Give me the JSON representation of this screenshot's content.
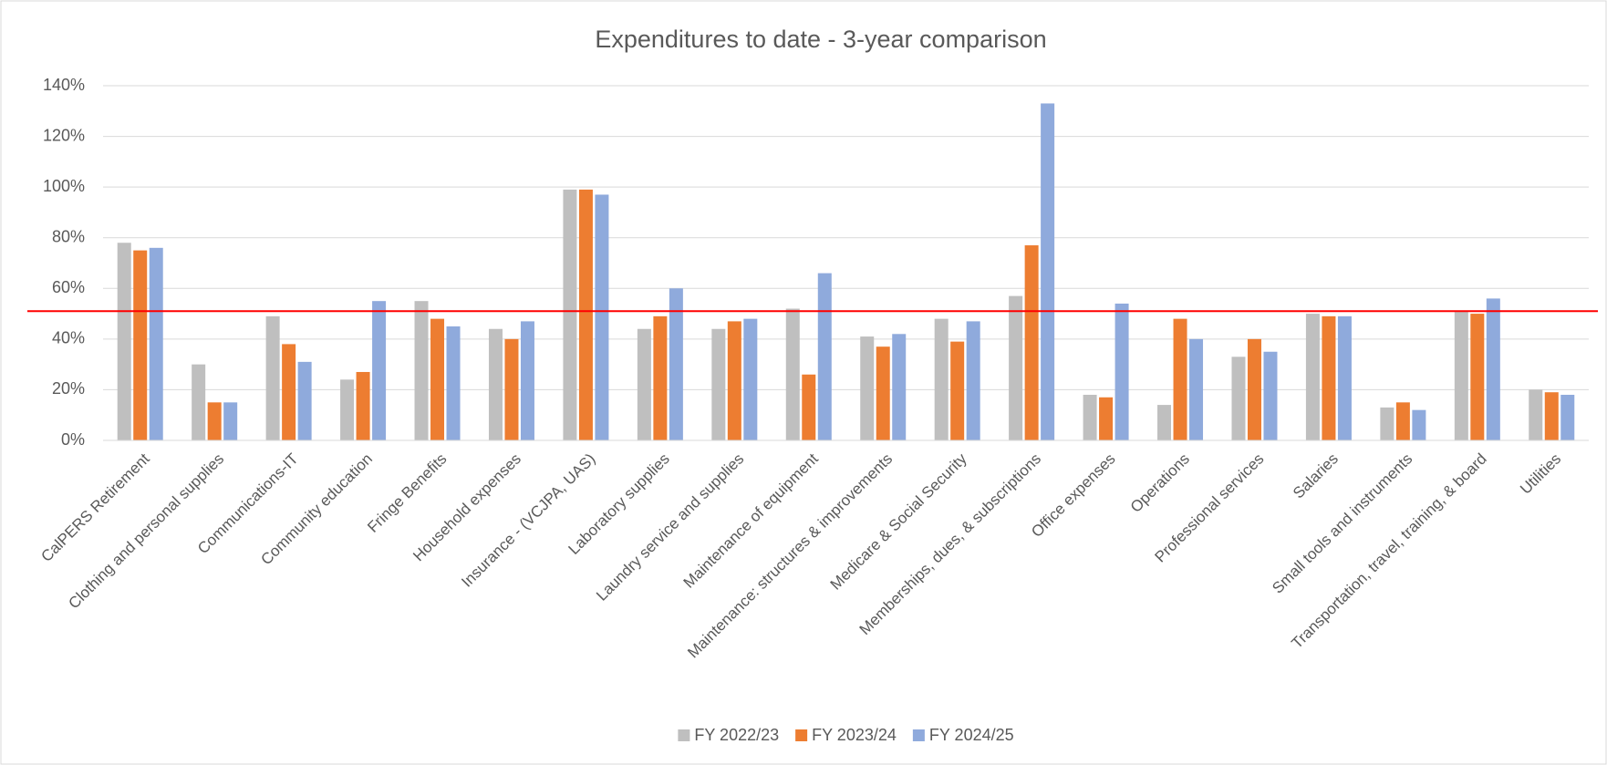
{
  "chart_data": {
    "type": "bar",
    "title": "Expenditures to date - 3-year comparison",
    "categories": [
      "CalPERS Retirement",
      "Clothing and personal supplies",
      "Communications-IT",
      "Community education",
      "Fringe Benefits",
      "Household expenses",
      "Insurance - (VCJPA, UAS)",
      "Laboratory supplies",
      "Laundry service and supplies",
      "Maintenance of equipment",
      "Maintenance: structures & improvements",
      "Medicare & Social Security",
      "Memberships, dues, & subscriptions",
      "Office expenses",
      "Operations",
      "Professional services",
      "Salaries",
      "Small tools and instruments",
      "Transportation, travel, training, & board",
      "Utilities"
    ],
    "series": [
      {
        "name": "FY 2022/23",
        "color": "#bfbfbf",
        "values": [
          78,
          30,
          49,
          24,
          55,
          44,
          99,
          44,
          44,
          52,
          41,
          48,
          57,
          18,
          14,
          33,
          50,
          13,
          51,
          20
        ]
      },
      {
        "name": "FY 2023/24",
        "color": "#ed7d31",
        "values": [
          75,
          15,
          38,
          27,
          48,
          40,
          99,
          49,
          47,
          26,
          37,
          39,
          77,
          17,
          48,
          40,
          49,
          15,
          50,
          19
        ]
      },
      {
        "name": "FY 2024/25",
        "color": "#8faadc",
        "values": [
          76,
          15,
          31,
          55,
          45,
          47,
          97,
          60,
          48,
          66,
          42,
          47,
          133,
          54,
          40,
          35,
          49,
          12,
          56,
          18
        ]
      }
    ],
    "ylim": [
      0,
      140
    ],
    "yticks": [
      {
        "value": 0,
        "label": "0%"
      },
      {
        "value": 20,
        "label": "20%"
      },
      {
        "value": 40,
        "label": "40%"
      },
      {
        "value": 60,
        "label": "60%"
      },
      {
        "value": 80,
        "label": "80%"
      },
      {
        "value": 100,
        "label": "100%"
      },
      {
        "value": 120,
        "label": "120%"
      },
      {
        "value": 140,
        "label": "140%"
      }
    ],
    "grid": true,
    "reference_line": {
      "value": 51,
      "color": "#ff0000"
    },
    "legend": "bottom"
  }
}
